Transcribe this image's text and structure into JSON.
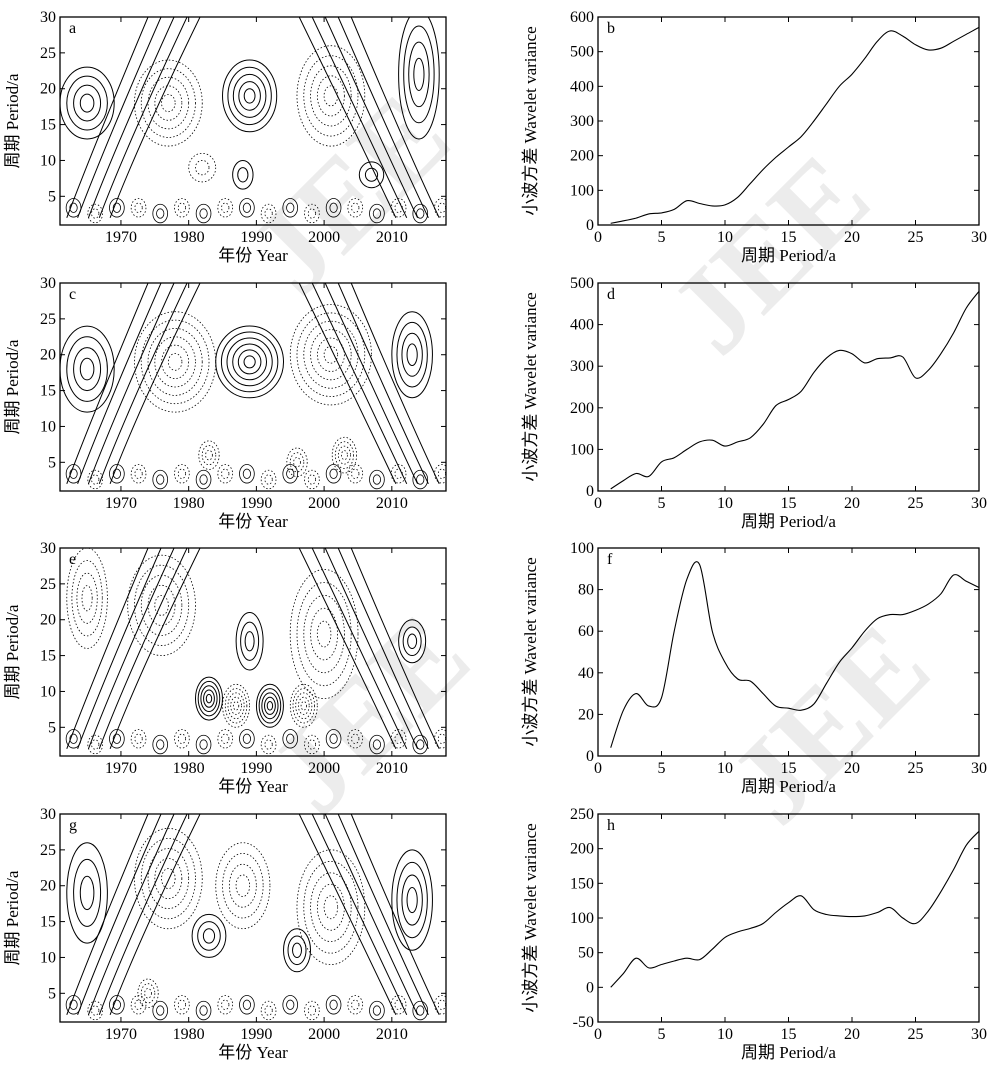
{
  "watermark": "JEE",
  "chart_data": [
    {
      "type": "contour",
      "panel_label": "a",
      "xlabel": "年份 Year",
      "ylabel": "周期 Period/a",
      "x_ticks": [
        1970,
        1980,
        1990,
        2000,
        2010
      ],
      "y_ticks": [
        5,
        10,
        15,
        20,
        25,
        30
      ],
      "xlim": [
        1961,
        2018
      ],
      "ylim": [
        1,
        30
      ],
      "line_styles": [
        "solid",
        "dotted"
      ],
      "centers": [
        {
          "x": 1965,
          "y": 18,
          "sign": 1,
          "rx": 4,
          "ry": 5,
          "n": 4
        },
        {
          "x": 1977,
          "y": 18,
          "sign": -1,
          "rx": 5,
          "ry": 6,
          "n": 5
        },
        {
          "x": 1989,
          "y": 19,
          "sign": 1,
          "rx": 4,
          "ry": 5,
          "n": 5
        },
        {
          "x": 2001,
          "y": 19,
          "sign": -1,
          "rx": 5,
          "ry": 7,
          "n": 5
        },
        {
          "x": 2014,
          "y": 22,
          "sign": 1,
          "rx": 3,
          "ry": 9,
          "n": 4
        },
        {
          "x": 1982,
          "y": 9,
          "sign": -1,
          "rx": 2,
          "ry": 2,
          "n": 2
        },
        {
          "x": 1988,
          "y": 8,
          "sign": 1,
          "rx": 1.5,
          "ry": 2,
          "n": 2
        },
        {
          "x": 2007,
          "y": 8,
          "sign": 1,
          "rx": 1.8,
          "ry": 1.8,
          "n": 2
        }
      ]
    },
    {
      "type": "line",
      "panel_label": "b",
      "xlabel": "周期 Period/a",
      "ylabel": "小波方差 Wavelet variance",
      "x_ticks": [
        0,
        5,
        10,
        15,
        20,
        25,
        30
      ],
      "y_ticks": [
        0,
        100,
        200,
        300,
        400,
        500,
        600
      ],
      "xlim": [
        0,
        30
      ],
      "ylim": [
        0,
        600
      ],
      "x": [
        1,
        2,
        3,
        4,
        5,
        6,
        7,
        8,
        9,
        10,
        11,
        12,
        13,
        14,
        15,
        16,
        17,
        18,
        19,
        20,
        21,
        22,
        23,
        24,
        25,
        26,
        27,
        28,
        29,
        30
      ],
      "y": [
        5,
        12,
        20,
        32,
        35,
        45,
        70,
        62,
        55,
        58,
        80,
        120,
        160,
        195,
        225,
        255,
        300,
        350,
        400,
        435,
        480,
        530,
        560,
        545,
        520,
        505,
        510,
        530,
        550,
        570
      ]
    },
    {
      "type": "contour",
      "panel_label": "c",
      "xlabel": "年份 Year",
      "ylabel": "周期 Period/a",
      "x_ticks": [
        1970,
        1980,
        1990,
        2000,
        2010
      ],
      "y_ticks": [
        5,
        10,
        15,
        20,
        25,
        30
      ],
      "xlim": [
        1961,
        2018
      ],
      "ylim": [
        1,
        30
      ],
      "line_styles": [
        "solid",
        "dotted"
      ],
      "centers": [
        {
          "x": 1965,
          "y": 18,
          "sign": 1,
          "rx": 4,
          "ry": 6,
          "n": 4
        },
        {
          "x": 1978,
          "y": 19,
          "sign": -1,
          "rx": 6,
          "ry": 7,
          "n": 6
        },
        {
          "x": 1989,
          "y": 19,
          "sign": 1,
          "rx": 5,
          "ry": 5,
          "n": 6
        },
        {
          "x": 2001,
          "y": 20,
          "sign": -1,
          "rx": 6,
          "ry": 7,
          "n": 6
        },
        {
          "x": 2013,
          "y": 20,
          "sign": 1,
          "rx": 3,
          "ry": 6,
          "n": 4
        },
        {
          "x": 1983,
          "y": 6,
          "sign": -1,
          "rx": 1.5,
          "ry": 2,
          "n": 3
        },
        {
          "x": 1996,
          "y": 5,
          "sign": -1,
          "rx": 1.5,
          "ry": 2,
          "n": 3
        },
        {
          "x": 2003,
          "y": 6,
          "sign": -1,
          "rx": 1.8,
          "ry": 2.5,
          "n": 4
        }
      ]
    },
    {
      "type": "line",
      "panel_label": "d",
      "xlabel": "周期 Period/a",
      "ylabel": "小波方差 Wavelet variance",
      "x_ticks": [
        0,
        5,
        10,
        15,
        20,
        25,
        30
      ],
      "y_ticks": [
        0,
        100,
        200,
        300,
        400,
        500
      ],
      "xlim": [
        0,
        30
      ],
      "ylim": [
        0,
        500
      ],
      "x": [
        1,
        2,
        3,
        4,
        5,
        6,
        7,
        8,
        9,
        10,
        11,
        12,
        13,
        14,
        15,
        16,
        17,
        18,
        19,
        20,
        21,
        22,
        23,
        24,
        25,
        26,
        27,
        28,
        29,
        30
      ],
      "y": [
        5,
        25,
        42,
        35,
        70,
        80,
        100,
        118,
        122,
        108,
        118,
        128,
        160,
        205,
        220,
        240,
        285,
        320,
        338,
        330,
        308,
        318,
        320,
        322,
        272,
        290,
        330,
        380,
        440,
        480
      ]
    },
    {
      "type": "contour",
      "panel_label": "e",
      "xlabel": "年份 Year",
      "ylabel": "周期 Period/a",
      "x_ticks": [
        1970,
        1980,
        1990,
        2000,
        2010
      ],
      "y_ticks": [
        5,
        10,
        15,
        20,
        25,
        30
      ],
      "xlim": [
        1961,
        2018
      ],
      "ylim": [
        1,
        30
      ],
      "line_styles": [
        "solid",
        "dotted"
      ],
      "centers": [
        {
          "x": 1965,
          "y": 23,
          "sign": -1,
          "rx": 3,
          "ry": 7,
          "n": 4
        },
        {
          "x": 1976,
          "y": 22,
          "sign": -1,
          "rx": 5,
          "ry": 7,
          "n": 5
        },
        {
          "x": 1989,
          "y": 17,
          "sign": 1,
          "rx": 2,
          "ry": 4,
          "n": 3
        },
        {
          "x": 2000,
          "y": 18,
          "sign": -1,
          "rx": 5,
          "ry": 9,
          "n": 5
        },
        {
          "x": 2013,
          "y": 17,
          "sign": 1,
          "rx": 2,
          "ry": 3,
          "n": 3
        },
        {
          "x": 1983,
          "y": 9,
          "sign": 1,
          "rx": 2,
          "ry": 3,
          "n": 5
        },
        {
          "x": 1992,
          "y": 8,
          "sign": 1,
          "rx": 2,
          "ry": 3,
          "n": 5
        },
        {
          "x": 1987,
          "y": 8,
          "sign": -1,
          "rx": 2,
          "ry": 3,
          "n": 5
        },
        {
          "x": 1997,
          "y": 8,
          "sign": -1,
          "rx": 2,
          "ry": 3,
          "n": 5
        }
      ]
    },
    {
      "type": "line",
      "panel_label": "f",
      "xlabel": "周期 Period/a",
      "ylabel": "小波方差 Wavelet variance",
      "x_ticks": [
        0,
        5,
        10,
        15,
        20,
        25,
        30
      ],
      "y_ticks": [
        0,
        20,
        40,
        60,
        80,
        100
      ],
      "xlim": [
        0,
        30
      ],
      "ylim": [
        0,
        100
      ],
      "x": [
        1,
        2,
        3,
        4,
        5,
        6,
        7,
        8,
        9,
        10,
        11,
        12,
        13,
        14,
        15,
        16,
        17,
        18,
        19,
        20,
        21,
        22,
        23,
        24,
        25,
        26,
        27,
        28,
        29,
        30
      ],
      "y": [
        4,
        22,
        30,
        24,
        28,
        60,
        85,
        92,
        60,
        45,
        37,
        36,
        30,
        24,
        23,
        22,
        25,
        35,
        45,
        52,
        60,
        66,
        68,
        68,
        70,
        73,
        78,
        87,
        84,
        81
      ]
    },
    {
      "type": "contour",
      "panel_label": "g",
      "xlabel": "年份 Year",
      "ylabel": "周期 Period/a",
      "x_ticks": [
        1970,
        1980,
        1990,
        2000,
        2010
      ],
      "y_ticks": [
        5,
        10,
        15,
        20,
        25,
        30
      ],
      "xlim": [
        1961,
        2018
      ],
      "ylim": [
        1,
        30
      ],
      "line_styles": [
        "solid",
        "dotted"
      ],
      "centers": [
        {
          "x": 1965,
          "y": 19,
          "sign": 1,
          "rx": 3,
          "ry": 7,
          "n": 3
        },
        {
          "x": 1977,
          "y": 21,
          "sign": -1,
          "rx": 5,
          "ry": 7,
          "n": 5
        },
        {
          "x": 1988,
          "y": 20,
          "sign": -1,
          "rx": 4,
          "ry": 6,
          "n": 4
        },
        {
          "x": 2001,
          "y": 17,
          "sign": -1,
          "rx": 5,
          "ry": 8,
          "n": 5
        },
        {
          "x": 2013,
          "y": 18,
          "sign": 1,
          "rx": 3,
          "ry": 7,
          "n": 4
        },
        {
          "x": 1983,
          "y": 13,
          "sign": 1,
          "rx": 2.5,
          "ry": 3,
          "n": 3
        },
        {
          "x": 1996,
          "y": 11,
          "sign": 1,
          "rx": 2,
          "ry": 3,
          "n": 3
        },
        {
          "x": 1974,
          "y": 5,
          "sign": -1,
          "rx": 1.5,
          "ry": 2,
          "n": 3
        }
      ]
    },
    {
      "type": "line",
      "panel_label": "h",
      "xlabel": "周期 Period/a",
      "ylabel": "小波方差 Wavelet variance",
      "x_ticks": [
        0,
        5,
        10,
        15,
        20,
        25,
        30
      ],
      "y_ticks": [
        -50,
        0,
        50,
        100,
        150,
        200,
        250
      ],
      "xlim": [
        0,
        30
      ],
      "ylim": [
        -50,
        250
      ],
      "x": [
        1,
        2,
        3,
        4,
        5,
        6,
        7,
        8,
        9,
        10,
        11,
        12,
        13,
        14,
        15,
        16,
        17,
        18,
        19,
        20,
        21,
        22,
        23,
        24,
        25,
        26,
        27,
        28,
        29,
        30
      ],
      "y": [
        0,
        20,
        42,
        28,
        33,
        38,
        42,
        40,
        55,
        72,
        80,
        85,
        92,
        108,
        122,
        132,
        112,
        105,
        103,
        102,
        103,
        108,
        115,
        100,
        92,
        110,
        138,
        170,
        205,
        225
      ]
    }
  ]
}
